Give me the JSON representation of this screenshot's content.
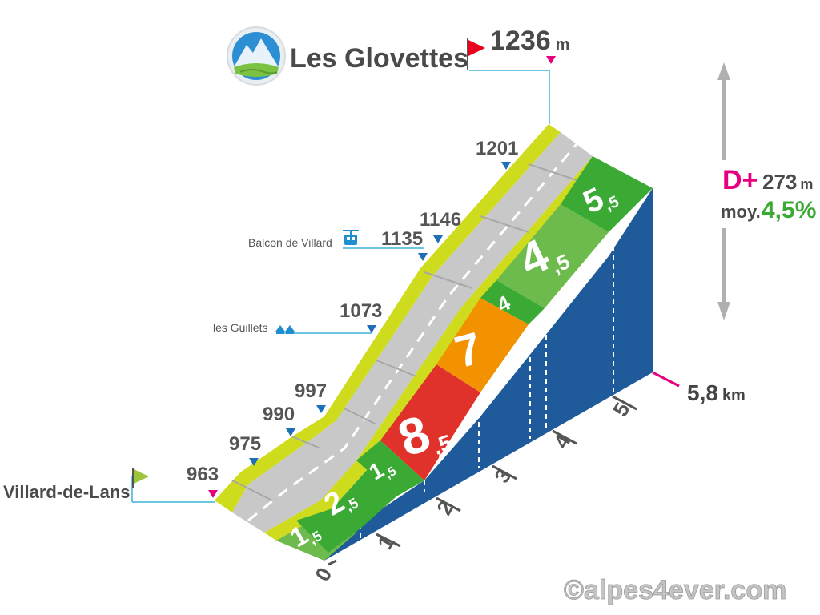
{
  "title": "Les Glovettes",
  "summit": {
    "elevation": "1236",
    "unit": "m"
  },
  "start": {
    "name": "Villard-de-Lans",
    "elevation": "963"
  },
  "distance": {
    "value": "5,8",
    "unit": "km"
  },
  "climb": {
    "dplus_label": "D+",
    "dplus_value": "273",
    "dplus_unit": "m",
    "avg_label": "moy.",
    "avg_value": "4,5%"
  },
  "waypoints": [
    {
      "elevation": "975"
    },
    {
      "elevation": "990"
    },
    {
      "elevation": "997"
    },
    {
      "elevation": "1073",
      "place": "les Guillets",
      "icon": "houses-icon"
    },
    {
      "elevation": "1135",
      "place": "Balcon de Villard",
      "icon": "cable-car-icon"
    },
    {
      "elevation": "1146"
    },
    {
      "elevation": "1201"
    }
  ],
  "km_ticks": [
    "0",
    "1",
    "2",
    "3",
    "4",
    "5"
  ],
  "segments": [
    {
      "grade_int": "1",
      "grade_dec": "5",
      "color": "#6dbb4d"
    },
    {
      "grade_int": "2",
      "grade_dec": "5",
      "color": "#3aaa35"
    },
    {
      "grade_int": "1",
      "grade_dec": "5",
      "color": "#3aaa35"
    },
    {
      "grade_int": "8",
      "grade_dec": "5",
      "color": "#e0312b"
    },
    {
      "grade_int": "7",
      "grade_dec": "",
      "color": "#f39200"
    },
    {
      "grade_int": "4",
      "grade_dec": "",
      "color": "#3aaa35"
    },
    {
      "grade_int": "4",
      "grade_dec": "5",
      "color": "#6dbb4d"
    },
    {
      "grade_int": "5",
      "grade_dec": "5",
      "color": "#3aaa35"
    }
  ],
  "watermark": "©alpes4ever.com",
  "colors": {
    "side": "#1f5b9a",
    "road": "#c8c8c8",
    "edge": "#cfdc1e",
    "pink": "#e6007e",
    "green_text": "#3aaa35",
    "leader": "#3bb3d8"
  }
}
